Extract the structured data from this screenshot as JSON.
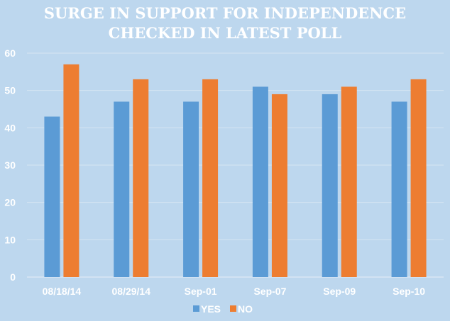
{
  "chart_data": {
    "type": "bar",
    "title": [
      "SURGE IN SUPPORT FOR INDEPENDENCE",
      "CHECKED IN LATEST POLL"
    ],
    "categories": [
      "08/18/14",
      "08/29/14",
      "Sep-01",
      "Sep-07",
      "Sep-09",
      "Sep-10"
    ],
    "series": [
      {
        "name": "YES",
        "values": [
          43,
          47,
          47,
          51,
          49,
          47
        ],
        "color": "#5b9bd5"
      },
      {
        "name": "NO",
        "values": [
          57,
          53,
          53,
          49,
          51,
          53
        ],
        "color": "#ed7d31"
      }
    ],
    "yticks": [
      0,
      10,
      20,
      30,
      40,
      50,
      60
    ],
    "ylim": [
      0,
      60
    ],
    "grid": true,
    "legend": "bottom",
    "xlabel": "",
    "ylabel": ""
  }
}
